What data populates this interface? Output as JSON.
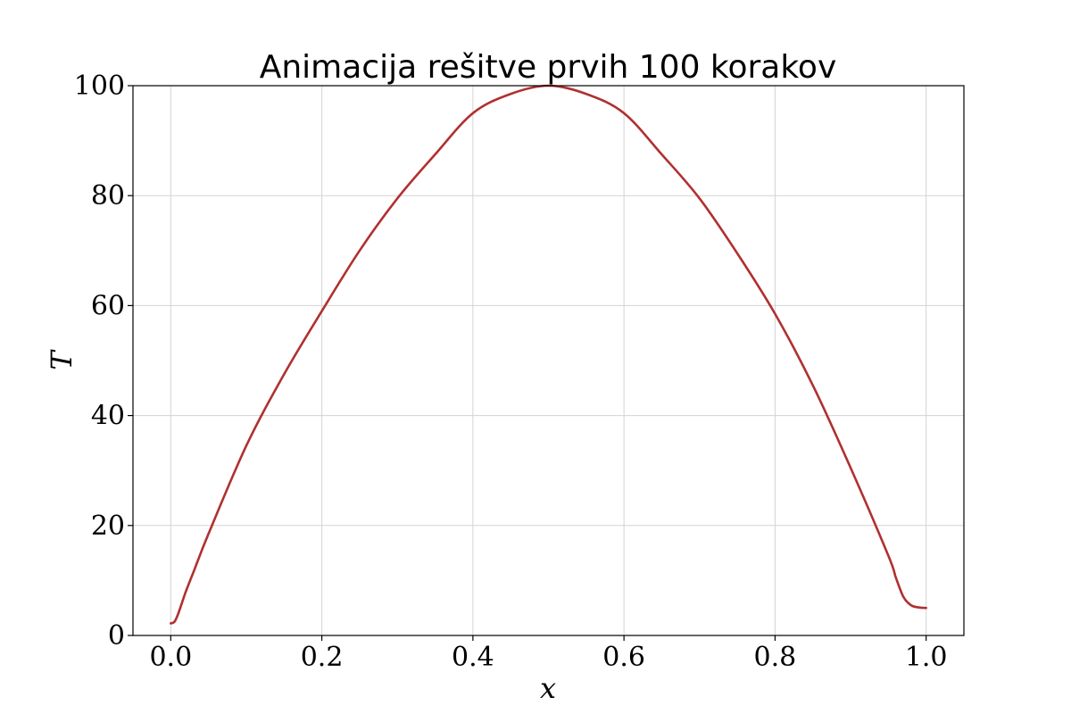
{
  "chart_data": {
    "type": "line",
    "title": "Animacija rešitve prvih 100 korakov",
    "xlabel": "x",
    "ylabel": "T",
    "xlim": [
      -0.05,
      1.05
    ],
    "ylim": [
      0,
      100
    ],
    "xticks": [
      "0.0",
      "0.2",
      "0.4",
      "0.6",
      "0.8",
      "1.0"
    ],
    "yticks": [
      "0",
      "20",
      "40",
      "60",
      "80",
      "100"
    ],
    "grid": true,
    "series": [
      {
        "color": "#b03030",
        "x": [
          0.0,
          0.005,
          0.01,
          0.02,
          0.03,
          0.05,
          0.1,
          0.15,
          0.2,
          0.25,
          0.3,
          0.35,
          0.4,
          0.45,
          0.5,
          0.55,
          0.6,
          0.65,
          0.7,
          0.75,
          0.8,
          0.85,
          0.9,
          0.95,
          0.96,
          0.97,
          0.98,
          0.99,
          1.0
        ],
        "y": [
          2.2,
          2.5,
          4.0,
          8.0,
          11.5,
          18.5,
          34.5,
          47.5,
          59.0,
          70.0,
          79.5,
          87.5,
          95.0,
          98.5,
          100.0,
          98.5,
          95.0,
          87.5,
          79.5,
          69.5,
          58.5,
          45.5,
          30.5,
          14.5,
          10.5,
          7.0,
          5.5,
          5.1,
          5.0
        ]
      }
    ]
  }
}
